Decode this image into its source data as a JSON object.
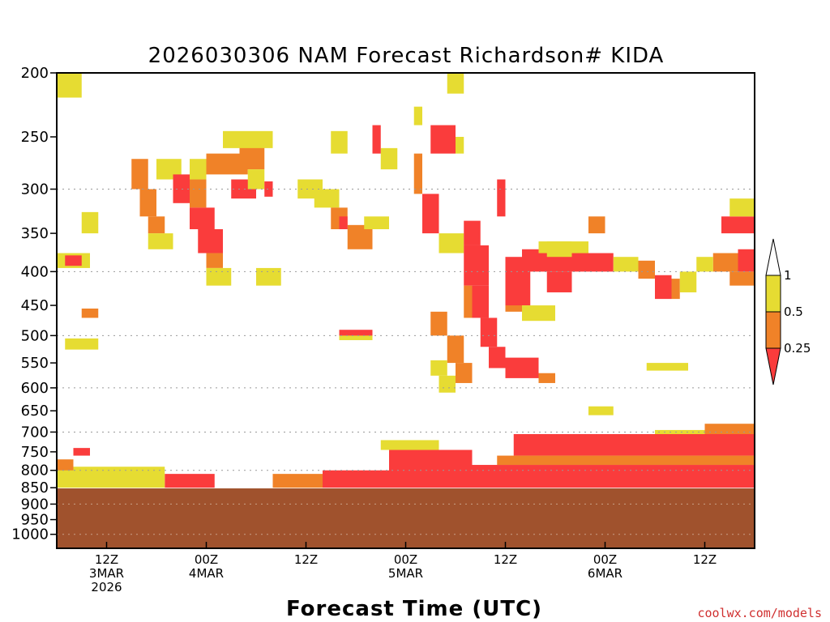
{
  "chart_data": {
    "type": "heatmap",
    "title": "2026030306 NAM Forecast Richardson# KIDA",
    "xlabel": "Forecast Time (UTC)",
    "ylabel": "",
    "credit": "coolwx.com/models",
    "y_axis": {
      "scale": "log",
      "units": "hPa",
      "range": [
        1050,
        200
      ],
      "ticks": [
        200,
        250,
        300,
        350,
        400,
        450,
        500,
        550,
        600,
        650,
        700,
        750,
        800,
        850,
        900,
        950,
        1000
      ],
      "dotted_gridlines": [
        300,
        400,
        500,
        600,
        700,
        800,
        900,
        1000
      ]
    },
    "x_axis": {
      "range": [
        "2026-03-03T06Z",
        "2026-03-06T18Z"
      ],
      "ticks": [
        {
          "time": "2026-03-03T12Z",
          "lines": [
            "12Z",
            "3MAR",
            "2026"
          ]
        },
        {
          "time": "2026-03-04T00Z",
          "lines": [
            "00Z",
            "4MAR"
          ]
        },
        {
          "time": "2026-03-04T12Z",
          "lines": [
            "12Z"
          ]
        },
        {
          "time": "2026-03-05T00Z",
          "lines": [
            "00Z",
            "5MAR"
          ]
        },
        {
          "time": "2026-03-05T12Z",
          "lines": [
            "12Z"
          ]
        },
        {
          "time": "2026-03-06T00Z",
          "lines": [
            "00Z",
            "6MAR"
          ]
        },
        {
          "time": "2026-03-06T12Z",
          "lines": [
            "12Z"
          ]
        }
      ]
    },
    "colorbar": {
      "labels": [
        "1",
        "0.5",
        "0.25"
      ],
      "bins": [
        {
          "range": "0.5-1",
          "color": "#e6dc32"
        },
        {
          "range": "0.25-0.5",
          "color": "#f08228"
        },
        {
          "range": "<0.25",
          "color": "#fa3c3c"
        }
      ],
      "below_ground_color": "#a0522d"
    },
    "surface_pressure_hpa": 852,
    "regions": [
      {
        "bin": "0.5-1",
        "t": [
          "2026-03-03T06Z",
          "2026-03-03T09Z"
        ],
        "p": [
          200,
          218
        ]
      },
      {
        "bin": "0.5-1",
        "t": [
          "2026-03-03T09Z",
          "2026-03-03T11Z"
        ],
        "p": [
          325,
          350
        ]
      },
      {
        "bin": "0.5-1",
        "t": [
          "2026-03-03T06Z",
          "2026-03-03T10Z"
        ],
        "p": [
          375,
          395
        ]
      },
      {
        "bin": "<0.25",
        "t": [
          "2026-03-03T07Z",
          "2026-03-03T09Z"
        ],
        "p": [
          378,
          392
        ]
      },
      {
        "bin": "0.5-1",
        "t": [
          "2026-03-03T07Z",
          "2026-03-03T11Z"
        ],
        "p": [
          505,
          525
        ]
      },
      {
        "bin": "0.25-0.5",
        "t": [
          "2026-03-03T09Z",
          "2026-03-03T11Z"
        ],
        "p": [
          455,
          470
        ]
      },
      {
        "bin": "0.25-0.5",
        "t": [
          "2026-03-03T15Z",
          "2026-03-03T17Z"
        ],
        "p": [
          270,
          300
        ]
      },
      {
        "bin": "0.25-0.5",
        "t": [
          "2026-03-03T16Z",
          "2026-03-03T18Z"
        ],
        "p": [
          300,
          330
        ]
      },
      {
        "bin": "0.25-0.5",
        "t": [
          "2026-03-03T17Z",
          "2026-03-03T19Z"
        ],
        "p": [
          330,
          350
        ]
      },
      {
        "bin": "0.5-1",
        "t": [
          "2026-03-03T17Z",
          "2026-03-03T20Z"
        ],
        "p": [
          350,
          370
        ]
      },
      {
        "bin": "0.5-1",
        "t": [
          "2026-03-03T18Z",
          "2026-03-03T21Z"
        ],
        "p": [
          270,
          290
        ]
      },
      {
        "bin": "<0.25",
        "t": [
          "2026-03-03T20Z",
          "2026-03-03T22Z"
        ],
        "p": [
          285,
          315
        ]
      },
      {
        "bin": "0.25-0.5",
        "t": [
          "2026-03-03T22Z",
          "2026-03-04T00Z"
        ],
        "p": [
          290,
          320
        ]
      },
      {
        "bin": "<0.25",
        "t": [
          "2026-03-03T22Z",
          "2026-03-04T01Z"
        ],
        "p": [
          320,
          345
        ]
      },
      {
        "bin": "<0.25",
        "t": [
          "2026-03-03T23Z",
          "2026-03-04T02Z"
        ],
        "p": [
          345,
          375
        ]
      },
      {
        "bin": "0.25-0.5",
        "t": [
          "2026-03-04T00Z",
          "2026-03-04T02Z"
        ],
        "p": [
          375,
          395
        ]
      },
      {
        "bin": "0.5-1",
        "t": [
          "2026-03-04T00Z",
          "2026-03-04T03Z"
        ],
        "p": [
          395,
          420
        ]
      },
      {
        "bin": "0.5-1",
        "t": [
          "2026-03-03T22Z",
          "2026-03-04T00Z"
        ],
        "p": [
          270,
          290
        ]
      },
      {
        "bin": "0.25-0.5",
        "t": [
          "2026-03-04T00Z",
          "2026-03-04T05Z"
        ],
        "p": [
          265,
          285
        ]
      },
      {
        "bin": "0.25-0.5",
        "t": [
          "2026-03-04T04Z",
          "2026-03-04T07Z"
        ],
        "p": [
          250,
          280
        ]
      },
      {
        "bin": "0.5-1",
        "t": [
          "2026-03-04T02Z",
          "2026-03-04T08Z"
        ],
        "p": [
          245,
          260
        ]
      },
      {
        "bin": "<0.25",
        "t": [
          "2026-03-04T03Z",
          "2026-03-04T06Z"
        ],
        "p": [
          290,
          310
        ]
      },
      {
        "bin": "0.5-1",
        "t": [
          "2026-03-04T05Z",
          "2026-03-04T07Z"
        ],
        "p": [
          280,
          300
        ]
      },
      {
        "bin": "<0.25",
        "t": [
          "2026-03-04T07Z",
          "2026-03-04T08Z"
        ],
        "p": [
          292,
          308
        ]
      },
      {
        "bin": "0.5-1",
        "t": [
          "2026-03-04T06Z",
          "2026-03-04T09Z"
        ],
        "p": [
          395,
          420
        ]
      },
      {
        "bin": "0.5-1",
        "t": [
          "2026-03-04T11Z",
          "2026-03-04T14Z"
        ],
        "p": [
          290,
          310
        ]
      },
      {
        "bin": "0.5-1",
        "t": [
          "2026-03-04T13Z",
          "2026-03-04T16Z"
        ],
        "p": [
          300,
          320
        ]
      },
      {
        "bin": "0.5-1",
        "t": [
          "2026-03-04T15Z",
          "2026-03-04T17Z"
        ],
        "p": [
          245,
          265
        ]
      },
      {
        "bin": "0.25-0.5",
        "t": [
          "2026-03-04T15Z",
          "2026-03-04T17Z"
        ],
        "p": [
          320,
          345
        ]
      },
      {
        "bin": "0.25-0.5",
        "t": [
          "2026-03-04T17Z",
          "2026-03-04T20Z"
        ],
        "p": [
          340,
          370
        ]
      },
      {
        "bin": "<0.25",
        "t": [
          "2026-03-04T16Z",
          "2026-03-04T17Z"
        ],
        "p": [
          330,
          345
        ]
      },
      {
        "bin": "<0.25",
        "t": [
          "2026-03-04T16Z",
          "2026-03-04T20Z"
        ],
        "p": [
          490,
          505
        ]
      },
      {
        "bin": "0.5-1",
        "t": [
          "2026-03-04T16Z",
          "2026-03-04T20Z"
        ],
        "p": [
          500,
          508
        ]
      },
      {
        "bin": "0.5-1",
        "t": [
          "2026-03-04T19Z",
          "2026-03-04T22Z"
        ],
        "p": [
          330,
          345
        ]
      },
      {
        "bin": "0.5-1",
        "t": [
          "2026-03-04T21Z",
          "2026-03-04T23Z"
        ],
        "p": [
          260,
          280
        ]
      },
      {
        "bin": "<0.25",
        "t": [
          "2026-03-04T20Z",
          "2026-03-04T21Z"
        ],
        "p": [
          240,
          265
        ]
      },
      {
        "bin": "0.25-0.5",
        "t": [
          "2026-03-05T01Z",
          "2026-03-05T02Z"
        ],
        "p": [
          265,
          305
        ]
      },
      {
        "bin": "0.5-1",
        "t": [
          "2026-03-05T01Z",
          "2026-03-05T02Z"
        ],
        "p": [
          225,
          240
        ]
      },
      {
        "bin": "<0.25",
        "t": [
          "2026-03-05T02Z",
          "2026-03-05T04Z"
        ],
        "p": [
          305,
          350
        ]
      },
      {
        "bin": "<0.25",
        "t": [
          "2026-03-05T03Z",
          "2026-03-05T06Z"
        ],
        "p": [
          240,
          265
        ]
      },
      {
        "bin": "0.5-1",
        "t": [
          "2026-03-05T06Z",
          "2026-03-05T07Z"
        ],
        "p": [
          250,
          265
        ]
      },
      {
        "bin": "0.5-1",
        "t": [
          "2026-03-05T05Z",
          "2026-03-05T07Z"
        ],
        "p": [
          200,
          215
        ]
      },
      {
        "bin": "0.5-1",
        "t": [
          "2026-03-05T04Z",
          "2026-03-05T07Z"
        ],
        "p": [
          350,
          375
        ]
      },
      {
        "bin": "<0.25",
        "t": [
          "2026-03-05T07Z",
          "2026-03-05T09Z"
        ],
        "p": [
          335,
          365
        ]
      },
      {
        "bin": "<0.25",
        "t": [
          "2026-03-05T07Z",
          "2026-03-05T10Z"
        ],
        "p": [
          365,
          420
        ]
      },
      {
        "bin": "<0.25",
        "t": [
          "2026-03-05T08Z",
          "2026-03-05T10Z"
        ],
        "p": [
          420,
          470
        ]
      },
      {
        "bin": "<0.25",
        "t": [
          "2026-03-05T09Z",
          "2026-03-05T11Z"
        ],
        "p": [
          470,
          520
        ]
      },
      {
        "bin": "<0.25",
        "t": [
          "2026-03-05T10Z",
          "2026-03-05T12Z"
        ],
        "p": [
          520,
          560
        ]
      },
      {
        "bin": "0.25-0.5",
        "t": [
          "2026-03-05T07Z",
          "2026-03-05T08Z"
        ],
        "p": [
          420,
          470
        ]
      },
      {
        "bin": "0.25-0.5",
        "t": [
          "2026-03-05T03Z",
          "2026-03-05T05Z"
        ],
        "p": [
          460,
          500
        ]
      },
      {
        "bin": "0.25-0.5",
        "t": [
          "2026-03-05T05Z",
          "2026-03-05T07Z"
        ],
        "p": [
          500,
          550
        ]
      },
      {
        "bin": "0.5-1",
        "t": [
          "2026-03-05T03Z",
          "2026-03-05T05Z"
        ],
        "p": [
          545,
          575
        ]
      },
      {
        "bin": "0.5-1",
        "t": [
          "2026-03-05T04Z",
          "2026-03-05T06Z"
        ],
        "p": [
          575,
          610
        ]
      },
      {
        "bin": "0.25-0.5",
        "t": [
          "2026-03-05T06Z",
          "2026-03-05T08Z"
        ],
        "p": [
          550,
          590
        ]
      },
      {
        "bin": "<0.25",
        "t": [
          "2026-03-05T11Z",
          "2026-03-05T12Z"
        ],
        "p": [
          290,
          330
        ]
      },
      {
        "bin": "0.25-0.5",
        "t": [
          "2026-03-05T12Z",
          "2026-03-05T14Z"
        ],
        "p": [
          410,
          460
        ]
      },
      {
        "bin": "<0.25",
        "t": [
          "2026-03-05T12Z",
          "2026-03-05T15Z"
        ],
        "p": [
          380,
          450
        ]
      },
      {
        "bin": "<0.25",
        "t": [
          "2026-03-05T14Z",
          "2026-03-05T20Z"
        ],
        "p": [
          370,
          400
        ]
      },
      {
        "bin": "<0.25",
        "t": [
          "2026-03-05T17Z",
          "2026-03-05T20Z"
        ],
        "p": [
          400,
          430
        ]
      },
      {
        "bin": "0.5-1",
        "t": [
          "2026-03-05T14Z",
          "2026-03-05T18Z"
        ],
        "p": [
          450,
          475
        ]
      },
      {
        "bin": "<0.25",
        "t": [
          "2026-03-05T12Z",
          "2026-03-05T16Z"
        ],
        "p": [
          540,
          580
        ]
      },
      {
        "bin": "0.25-0.5",
        "t": [
          "2026-03-05T16Z",
          "2026-03-05T18Z"
        ],
        "p": [
          570,
          590
        ]
      },
      {
        "bin": "0.5-1",
        "t": [
          "2026-03-05T17Z",
          "2026-03-05T20Z"
        ],
        "p": [
          360,
          380
        ]
      },
      {
        "bin": "<0.25",
        "t": [
          "2026-03-05T20Z",
          "2026-03-06T01Z"
        ],
        "p": [
          375,
          400
        ]
      },
      {
        "bin": "0.5-1",
        "t": [
          "2026-03-06T01Z",
          "2026-03-06T04Z"
        ],
        "p": [
          380,
          400
        ]
      },
      {
        "bin": "0.25-0.5",
        "t": [
          "2026-03-06T04Z",
          "2026-03-06T06Z"
        ],
        "p": [
          385,
          410
        ]
      },
      {
        "bin": "<0.25",
        "t": [
          "2026-03-06T06Z",
          "2026-03-06T08Z"
        ],
        "p": [
          405,
          440
        ]
      },
      {
        "bin": "0.25-0.5",
        "t": [
          "2026-03-06T08Z",
          "2026-03-06T09Z"
        ],
        "p": [
          410,
          440
        ]
      },
      {
        "bin": "0.5-1",
        "t": [
          "2026-03-06T09Z",
          "2026-03-06T11Z"
        ],
        "p": [
          400,
          430
        ]
      },
      {
        "bin": "0.25-0.5",
        "t": [
          "2026-03-06T13Z",
          "2026-03-06T16Z"
        ],
        "p": [
          375,
          400
        ]
      },
      {
        "bin": "<0.25",
        "t": [
          "2026-03-06T16Z",
          "2026-03-06T18Z"
        ],
        "p": [
          370,
          400
        ]
      },
      {
        "bin": "0.25-0.5",
        "t": [
          "2026-03-06T15Z",
          "2026-03-06T18Z"
        ],
        "p": [
          400,
          420
        ]
      },
      {
        "bin": "0.5-1",
        "t": [
          "2026-03-06T11Z",
          "2026-03-06T13Z"
        ],
        "p": [
          380,
          400
        ]
      },
      {
        "bin": "<0.25",
        "t": [
          "2026-03-06T14Z",
          "2026-03-06T18Z"
        ],
        "p": [
          330,
          350
        ]
      },
      {
        "bin": "0.5-1",
        "t": [
          "2026-03-06T15Z",
          "2026-03-06T18Z"
        ],
        "p": [
          310,
          330
        ]
      },
      {
        "bin": "0.25-0.5",
        "t": [
          "2026-03-05T22Z",
          "2026-03-06T00Z"
        ],
        "p": [
          330,
          350
        ]
      },
      {
        "bin": "0.5-1",
        "t": [
          "2026-03-05T16Z",
          "2026-03-05T22Z"
        ],
        "p": [
          360,
          375
        ]
      },
      {
        "bin": "0.5-1",
        "t": [
          "2026-03-06T05Z",
          "2026-03-06T10Z"
        ],
        "p": [
          550,
          565
        ]
      },
      {
        "bin": "0.5-1",
        "t": [
          "2026-03-05T22Z",
          "2026-03-06T01Z"
        ],
        "p": [
          640,
          660
        ]
      },
      {
        "bin": "0.5-1",
        "t": [
          "2026-03-06T06Z",
          "2026-03-06T18Z"
        ],
        "p": [
          695,
          720
        ]
      },
      {
        "bin": "0.25-0.5",
        "t": [
          "2026-03-06T12Z",
          "2026-03-06T18Z"
        ],
        "p": [
          680,
          705
        ]
      },
      {
        "bin": "<0.25",
        "t": [
          "2026-03-05T13Z",
          "2026-03-06T18Z"
        ],
        "p": [
          705,
          760
        ]
      },
      {
        "bin": "0.25-0.5",
        "t": [
          "2026-03-05T11Z",
          "2026-03-06T18Z"
        ],
        "p": [
          760,
          785
        ]
      },
      {
        "bin": "<0.25",
        "t": [
          "2026-03-05T08Z",
          "2026-03-06T18Z"
        ],
        "p": [
          785,
          850
        ]
      },
      {
        "bin": "<0.25",
        "t": [
          "2026-03-04T22Z",
          "2026-03-05T08Z"
        ],
        "p": [
          745,
          850
        ]
      },
      {
        "bin": "0.5-1",
        "t": [
          "2026-03-04T21Z",
          "2026-03-05T04Z"
        ],
        "p": [
          720,
          745
        ]
      },
      {
        "bin": "<0.25",
        "t": [
          "2026-03-04T14Z",
          "2026-03-04T22Z"
        ],
        "p": [
          800,
          850
        ]
      },
      {
        "bin": "0.25-0.5",
        "t": [
          "2026-03-04T08Z",
          "2026-03-04T14Z"
        ],
        "p": [
          810,
          850
        ]
      },
      {
        "bin": "<0.25",
        "t": [
          "2026-03-03T19Z",
          "2026-03-04T01Z"
        ],
        "p": [
          810,
          850
        ]
      },
      {
        "bin": "0.5-1",
        "t": [
          "2026-03-03T06Z",
          "2026-03-03T19Z"
        ],
        "p": [
          790,
          850
        ]
      },
      {
        "bin": "<0.25",
        "t": [
          "2026-03-03T08Z",
          "2026-03-03T10Z"
        ],
        "p": [
          740,
          760
        ]
      },
      {
        "bin": "0.25-0.5",
        "t": [
          "2026-03-03T06Z",
          "2026-03-03T08Z"
        ],
        "p": [
          770,
          800
        ]
      }
    ]
  }
}
